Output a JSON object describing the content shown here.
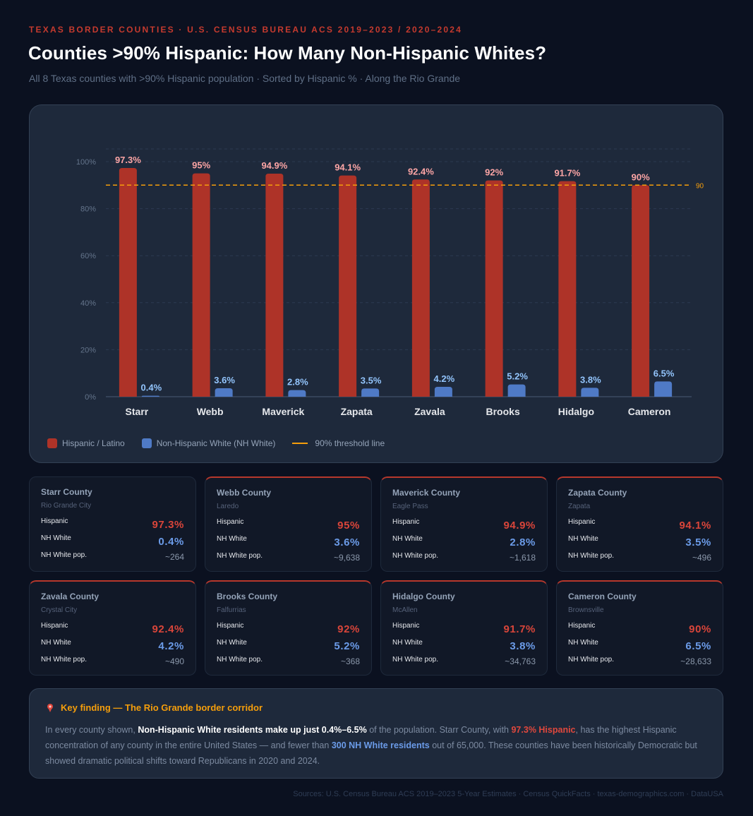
{
  "header": {
    "kicker": "TEXAS BORDER COUNTIES · U.S. CENSUS BUREAU ACS 2019–2023 / 2020–2024",
    "title": "Counties >90% Hispanic: How Many Non-Hispanic Whites?",
    "subtitle": "All 8 Texas counties with >90% Hispanic population · Sorted by Hispanic % · Along the Rio Grande"
  },
  "colors": {
    "hispanic": "#ae3328",
    "hispanic_label": "#fca5a5",
    "nh_white": "#4f7ac6",
    "nh_white_label": "#93c5fd",
    "threshold": "#f59e0b",
    "grid": "#2c3a52",
    "axis_text": "#64748b"
  },
  "chart_data": {
    "type": "bar",
    "categories": [
      "Starr",
      "Webb",
      "Maverick",
      "Zapata",
      "Zavala",
      "Brooks",
      "Hidalgo",
      "Cameron"
    ],
    "series": [
      {
        "name": "Hispanic / Latino",
        "values": [
          97.3,
          95,
          94.9,
          94.1,
          92.4,
          92,
          91.7,
          90
        ]
      },
      {
        "name": "Non-Hispanic White (NH White)",
        "values": [
          0.4,
          3.6,
          2.8,
          3.5,
          4.2,
          5.2,
          3.8,
          6.5
        ]
      }
    ],
    "threshold": {
      "value": 90,
      "label": "90",
      "legend": "90% threshold line"
    },
    "ylim": [
      0,
      105
    ],
    "yticks": [
      0,
      20,
      40,
      60,
      80,
      100
    ],
    "ytick_labels": [
      "0%",
      "20%",
      "40%",
      "60%",
      "80%",
      "100%"
    ],
    "data_labels": {
      "hispanic": [
        "97.3%",
        "95%",
        "94.9%",
        "94.1%",
        "92.4%",
        "92%",
        "91.7%",
        "90%"
      ],
      "nh_white": [
        "0.4%",
        "3.6%",
        "2.8%",
        "3.5%",
        "4.2%",
        "5.2%",
        "3.8%",
        "6.5%"
      ]
    },
    "grid": true,
    "legend_position": "bottom-left"
  },
  "legend": {
    "hispanic": "Hispanic / Latino",
    "nh_white": "Non-Hispanic White (NH White)",
    "threshold": "90% threshold line"
  },
  "row_labels": {
    "hispanic": "Hispanic",
    "nh_white": "NH White",
    "pop": "NH White pop."
  },
  "counties": [
    {
      "name": "Starr County",
      "city": "Rio Grande City",
      "hispanic": "97.3%",
      "nh_white": "0.4%",
      "pop": "~264"
    },
    {
      "name": "Webb County",
      "city": "Laredo",
      "hispanic": "95%",
      "nh_white": "3.6%",
      "pop": "~9,638"
    },
    {
      "name": "Maverick County",
      "city": "Eagle Pass",
      "hispanic": "94.9%",
      "nh_white": "2.8%",
      "pop": "~1,618"
    },
    {
      "name": "Zapata County",
      "city": "Zapata",
      "hispanic": "94.1%",
      "nh_white": "3.5%",
      "pop": "~496"
    },
    {
      "name": "Zavala County",
      "city": "Crystal City",
      "hispanic": "92.4%",
      "nh_white": "4.2%",
      "pop": "~490"
    },
    {
      "name": "Brooks County",
      "city": "Falfurrias",
      "hispanic": "92%",
      "nh_white": "5.2%",
      "pop": "~368"
    },
    {
      "name": "Hidalgo County",
      "city": "McAllen",
      "hispanic": "91.7%",
      "nh_white": "3.8%",
      "pop": "~34,763"
    },
    {
      "name": "Cameron County",
      "city": "Brownsville",
      "hispanic": "90%",
      "nh_white": "6.5%",
      "pop": "~28,633"
    }
  ],
  "finding": {
    "icon": "pin-icon",
    "heading": "Key finding — The Rio Grande border corridor",
    "t1": "In every county shown, ",
    "t2": "Non-Hispanic White residents make up just 0.4%–6.5%",
    "t3": " of the population. Starr County, with ",
    "t4": "97.3% Hispanic",
    "t5": ", has the highest Hispanic concentration of any county in the entire United States — and fewer than ",
    "t6": "300 NH White residents",
    "t7": " out of 65,000. These counties have been historically Democratic but showed dramatic political shifts toward Republicans in 2020 and 2024."
  },
  "sources": "Sources: U.S. Census Bureau ACS 2019–2023 5-Year Estimates · Census QuickFacts · texas-demographics.com · DataUSA"
}
